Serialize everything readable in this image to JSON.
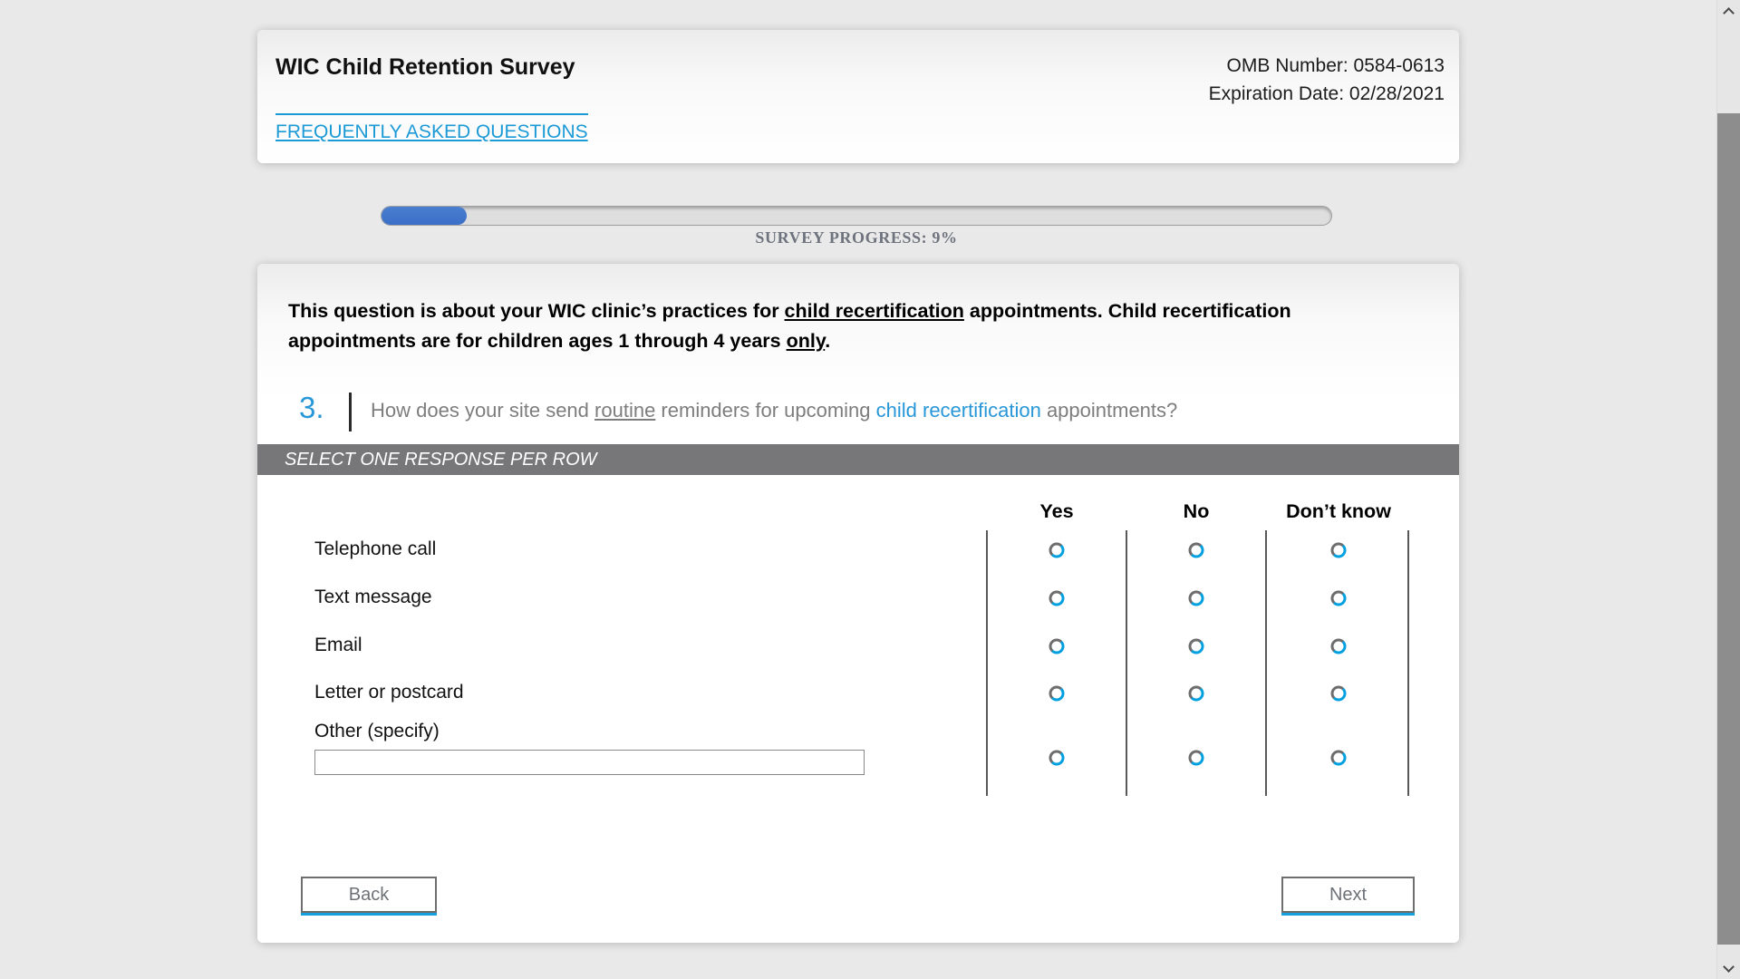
{
  "header": {
    "title": "WIC Child Retention Survey",
    "faq_link": "FREQUENTLY ASKED QUESTIONS",
    "omb_number": "OMB Number: 0584-0613",
    "expiration_date": "Expiration Date: 02/28/2021"
  },
  "progress": {
    "label": "SURVEY PROGRESS: 9%",
    "percent": 9
  },
  "question": {
    "intro": {
      "p1": "This question is about your WIC clinic’s practices for ",
      "u1": "child recertification",
      "p2": " appointments. Child recertification appointments are for children ages 1 through 4 years ",
      "u2": "only",
      "p3": "."
    },
    "number": "3.",
    "q": {
      "p1": "How does your site send ",
      "u": "routine",
      "p2": " reminders for upcoming ",
      "link": "child recertification",
      "p3": " appointments?"
    }
  },
  "matrix": {
    "instruction": "SELECT ONE RESPONSE PER ROW",
    "columns": [
      "Yes",
      "No",
      "Don’t know"
    ],
    "rows": [
      "Telephone call",
      "Text message",
      "Email",
      "Letter or postcard",
      "Other (specify)"
    ],
    "other_value": ""
  },
  "buttons": {
    "back": "Back",
    "next": "Next"
  },
  "colors": {
    "accent_blue": "#1b9ad6",
    "progress_fill": "#3b6fc7",
    "instruction_bar": "#77777a",
    "radio_blue": "#00a0e0",
    "radio_gray": "#6d6d6d"
  }
}
